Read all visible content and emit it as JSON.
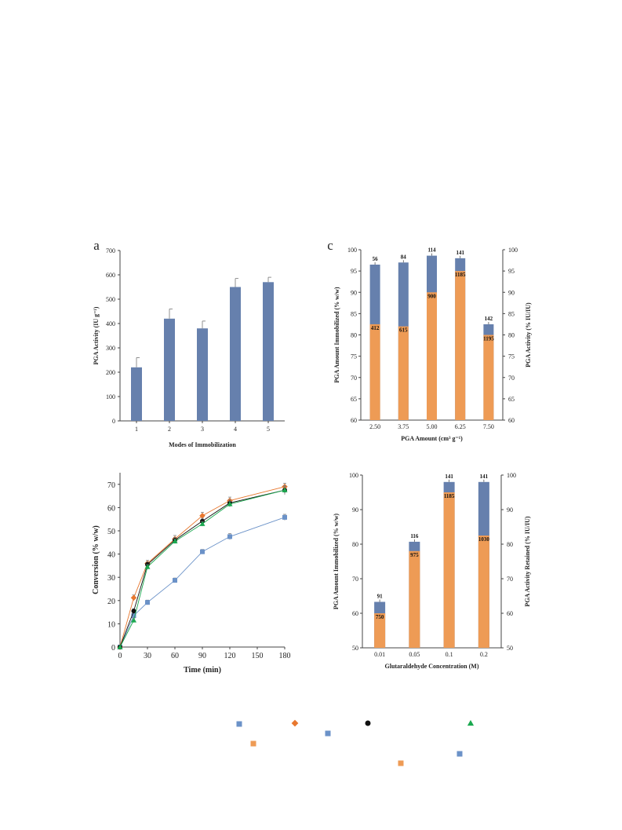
{
  "colors": {
    "blue": "#6680ad",
    "orange": "#ee9b55",
    "axis": "#444444",
    "black": "#111111",
    "green": "#1aa84f",
    "orange_marker": "#e8772e",
    "blue_marker": "#6b92c8"
  },
  "chart_data": [
    {
      "id": "a",
      "type": "bar",
      "panel_label": "a",
      "xlabel": "Modes of Immobilization",
      "ylabel": "PGA Activity (IU g⁻¹)",
      "categories": [
        "1",
        "2",
        "3",
        "4",
        "5"
      ],
      "values": [
        220,
        420,
        380,
        550,
        570
      ],
      "errors": [
        40,
        40,
        30,
        35,
        20
      ],
      "ylim": [
        0,
        700
      ],
      "yticks": [
        "0",
        "100",
        "200",
        "300",
        "400",
        "500",
        "600",
        "700"
      ],
      "grid": false
    },
    {
      "id": "c",
      "type": "bar",
      "panel_label": "c",
      "xlabel": "PGA Amount (cm³ g⁻¹)",
      "ylabel_left": "PGA Amount Immobilized (% w/w)",
      "ylabel_right": "PGA Activity (% IU/IU)",
      "categories": [
        "2.50",
        "3.75",
        "5.00",
        "6.25",
        "7.50"
      ],
      "series": [
        {
          "name": "PGA Amount Immobilized",
          "axis": "left",
          "values": [
            96.5,
            97,
            98.6,
            98,
            82.5
          ],
          "labels": [
            "56",
            "84",
            "114",
            "141",
            "142"
          ]
        },
        {
          "name": "PGA Activity",
          "axis": "right",
          "values": [
            82.5,
            82,
            90,
            95,
            80
          ],
          "labels": [
            "412",
            "615",
            "900",
            "1185",
            "1195"
          ]
        }
      ],
      "ylim_left": [
        60,
        100
      ],
      "ylim_right": [
        60,
        100
      ],
      "yticks_left": [
        "60",
        "65",
        "70",
        "75",
        "80",
        "85",
        "90",
        "95",
        "100"
      ],
      "yticks_right": [
        "60",
        "65",
        "70",
        "75",
        "80",
        "85",
        "90",
        "95",
        "100"
      ],
      "grid": false
    },
    {
      "id": "b",
      "type": "line",
      "panel_label": "",
      "xlabel": "Time (min)",
      "ylabel": "Conversion (% w/w)",
      "x": [
        0,
        15,
        30,
        60,
        90,
        120,
        180
      ],
      "xticks": [
        "0",
        "30",
        "60",
        "90",
        "120",
        "150",
        "180"
      ],
      "yticks": [
        "0",
        "10",
        "20",
        "30",
        "40",
        "50",
        "60",
        "70"
      ],
      "xlim": [
        0,
        180
      ],
      "ylim": [
        0,
        75
      ],
      "series": [
        {
          "marker": "square",
          "color": "#6b92c8",
          "values": [
            0,
            13.5,
            19.2,
            28.7,
            41,
            47.5,
            55.8
          ],
          "errors": [
            0,
            1,
            1,
            1,
            1,
            1.3,
            1.3
          ]
        },
        {
          "marker": "diamond",
          "color": "#e8772e",
          "values": [
            0,
            21.2,
            36,
            46.5,
            56.5,
            63,
            69
          ],
          "errors": [
            0,
            1.2,
            1.3,
            1.5,
            1.5,
            1.5,
            1.5
          ]
        },
        {
          "marker": "circle",
          "color": "#111111",
          "values": [
            0,
            15.5,
            35.5,
            46,
            54.2,
            62,
            67.5
          ],
          "errors": [
            0,
            1,
            1.2,
            1.2,
            1.2,
            1.5,
            2
          ]
        },
        {
          "marker": "triangle",
          "color": "#1aa84f",
          "values": [
            0,
            11.5,
            34.5,
            45.5,
            53,
            61.5,
            67.5
          ],
          "errors": [
            0,
            1,
            1,
            1,
            1,
            1.2,
            1.5
          ]
        }
      ],
      "grid": false
    },
    {
      "id": "d",
      "type": "bar",
      "panel_label": "",
      "xlabel": "Glutaraldehyde Concentration (M)",
      "ylabel_left": "PGA Amount Immobilized (% w/w)",
      "ylabel_right": "PGA Activity Retained (% IU/IU)",
      "categories": [
        "0.01",
        "0.05",
        "0.1",
        "0.2"
      ],
      "series": [
        {
          "name": "PGA Amount Immobilized",
          "axis": "left",
          "values": [
            63.3,
            80.7,
            98,
            98
          ],
          "labels": [
            "91",
            "116",
            "141",
            "141"
          ]
        },
        {
          "name": "PGA Activity Retained",
          "axis": "right",
          "values": [
            60,
            78,
            95,
            82.5
          ],
          "labels": [
            "750",
            "975",
            "1185",
            "1030"
          ]
        }
      ],
      "ylim_left": [
        50,
        100
      ],
      "ylim_right": [
        50,
        100
      ],
      "yticks_left": [
        "50",
        "60",
        "70",
        "80",
        "90",
        "100"
      ],
      "yticks_right": [
        "50",
        "60",
        "70",
        "80",
        "90",
        "100"
      ],
      "grid": false
    }
  ],
  "legend_markers": [
    {
      "marker": "square",
      "color": "#6b92c8"
    },
    {
      "marker": "diamond",
      "color": "#e8772e"
    },
    {
      "marker": "circle",
      "color": "#111111"
    },
    {
      "marker": "triangle",
      "color": "#1aa84f"
    },
    {
      "marker": "square",
      "color": "#ee9b55"
    },
    {
      "marker": "square",
      "color": "#6b92c8"
    },
    {
      "marker": "square",
      "color": "#ee9b55"
    },
    {
      "marker": "square",
      "color": "#6b92c8"
    }
  ]
}
